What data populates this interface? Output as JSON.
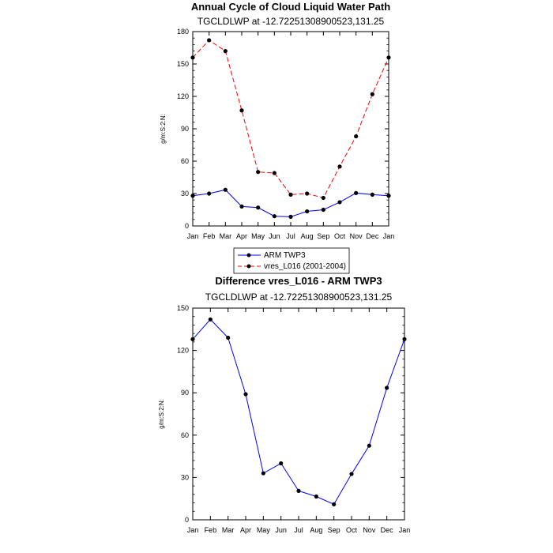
{
  "chart_data": [
    {
      "type": "line",
      "title": "Annual Cycle of Cloud Liquid Water Path",
      "subtitle": "TGCLDLWP at -12.72251308900523,131.25",
      "ylabel": "g/m:S:2:N:",
      "xlabel": "",
      "categories": [
        "Jan",
        "Feb",
        "Mar",
        "Apr",
        "May",
        "Jun",
        "Jul",
        "Aug",
        "Sep",
        "Oct",
        "Nov",
        "Dec",
        "Jan"
      ],
      "ylim": [
        0,
        180
      ],
      "yticks": [
        0,
        30,
        60,
        90,
        120,
        150,
        180
      ],
      "series": [
        {
          "name": "ARM TWP3",
          "color": "#0000ff",
          "dash": "solid",
          "values": [
            28,
            30,
            33.5,
            18,
            17,
            9,
            8.5,
            13.5,
            15,
            22,
            30.5,
            29,
            28
          ]
        },
        {
          "name": "vres_L016 (2001-2004)",
          "color": "#ff0000",
          "dash": "dashed",
          "values": [
            156,
            172,
            162,
            107,
            50,
            49,
            29,
            30,
            26,
            55,
            83,
            122,
            156
          ]
        }
      ],
      "legend": "bottom"
    },
    {
      "type": "line",
      "title": "Difference vres_L016 - ARM TWP3",
      "subtitle": "TGCLDLWP at -12.72251308900523,131.25",
      "ylabel": "g/m:S:2:N:",
      "xlabel": "",
      "categories": [
        "Jan",
        "Feb",
        "Mar",
        "Apr",
        "May",
        "Jun",
        "Jul",
        "Aug",
        "Sep",
        "Oct",
        "Nov",
        "Dec",
        "Jan"
      ],
      "ylim": [
        0,
        150
      ],
      "yticks": [
        0,
        30,
        60,
        90,
        120,
        150
      ],
      "series": [
        {
          "name": "Difference",
          "color": "#0000ff",
          "dash": "solid",
          "values": [
            128,
            142,
            129,
            89,
            33,
            40,
            20.5,
            16.5,
            11,
            32.5,
            52.5,
            93.5,
            128
          ]
        }
      ]
    }
  ]
}
